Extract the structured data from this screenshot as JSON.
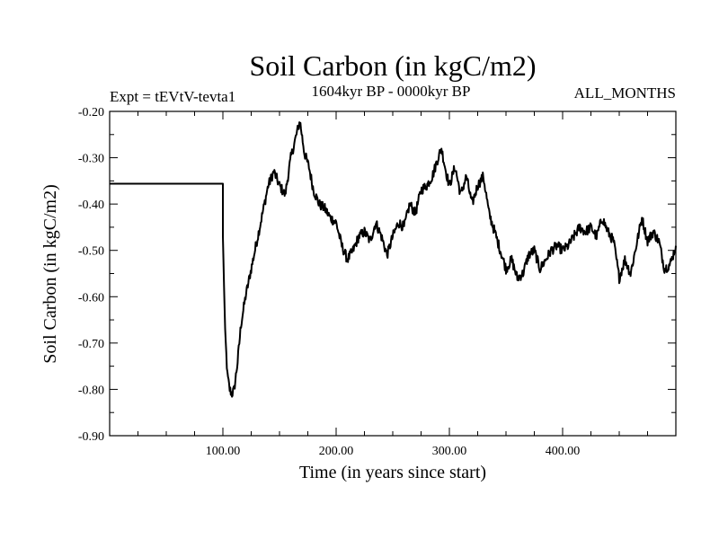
{
  "chart_data": {
    "type": "line",
    "title": "Soil Carbon (in kgC/m2)",
    "subtitle": "1604kyr BP - 0000kyr BP",
    "left_label": "Expt = tEVtV-tevta1",
    "right_label": "ALL_MONTHS",
    "xlabel": "Time (in years since start)",
    "ylabel": "Soil Carbon (in kgC/m2)",
    "xlim": [
      0,
      500
    ],
    "ylim": [
      -0.9,
      -0.2
    ],
    "x_ticks": [
      100,
      200,
      300,
      400
    ],
    "x_tick_labels": [
      "100.00",
      "200.00",
      "300.00",
      "400.00"
    ],
    "y_ticks": [
      -0.2,
      -0.3,
      -0.4,
      -0.5,
      -0.6,
      -0.7,
      -0.8,
      -0.9
    ],
    "y_tick_labels": [
      "-0.20",
      "-0.30",
      "-0.40",
      "-0.50",
      "-0.60",
      "-0.70",
      "-0.80",
      "-0.90"
    ],
    "grid": false,
    "series": [
      {
        "name": "Soil Carbon",
        "color": "#000000",
        "x": [
          0,
          100,
          100,
          102,
          104,
          106,
          108,
          110,
          113,
          116,
          120,
          125,
          130,
          135,
          140,
          145,
          150,
          155,
          160,
          165,
          168,
          172,
          176,
          180,
          185,
          190,
          195,
          200,
          205,
          210,
          215,
          220,
          225,
          230,
          235,
          240,
          245,
          250,
          255,
          260,
          265,
          270,
          275,
          280,
          285,
          290,
          293,
          297,
          300,
          305,
          310,
          315,
          320,
          325,
          330,
          335,
          340,
          345,
          350,
          355,
          360,
          365,
          370,
          375,
          380,
          385,
          390,
          395,
          400,
          405,
          410,
          415,
          420,
          425,
          430,
          435,
          440,
          445,
          450,
          455,
          460,
          465,
          470,
          475,
          480,
          485,
          490,
          495,
          500
        ],
        "values": [
          -0.356,
          -0.356,
          -0.47,
          -0.68,
          -0.77,
          -0.8,
          -0.81,
          -0.8,
          -0.74,
          -0.66,
          -0.6,
          -0.54,
          -0.48,
          -0.42,
          -0.36,
          -0.33,
          -0.36,
          -0.38,
          -0.3,
          -0.25,
          -0.22,
          -0.29,
          -0.32,
          -0.37,
          -0.4,
          -0.41,
          -0.43,
          -0.44,
          -0.49,
          -0.52,
          -0.5,
          -0.47,
          -0.46,
          -0.48,
          -0.44,
          -0.47,
          -0.51,
          -0.47,
          -0.44,
          -0.45,
          -0.4,
          -0.42,
          -0.37,
          -0.36,
          -0.34,
          -0.3,
          -0.28,
          -0.33,
          -0.36,
          -0.32,
          -0.38,
          -0.34,
          -0.4,
          -0.36,
          -0.34,
          -0.42,
          -0.46,
          -0.5,
          -0.54,
          -0.52,
          -0.56,
          -0.55,
          -0.51,
          -0.5,
          -0.54,
          -0.52,
          -0.5,
          -0.49,
          -0.5,
          -0.49,
          -0.47,
          -0.45,
          -0.46,
          -0.45,
          -0.47,
          -0.43,
          -0.46,
          -0.48,
          -0.56,
          -0.52,
          -0.55,
          -0.49,
          -0.43,
          -0.48,
          -0.46,
          -0.48,
          -0.54,
          -0.53,
          -0.49
        ]
      }
    ]
  }
}
